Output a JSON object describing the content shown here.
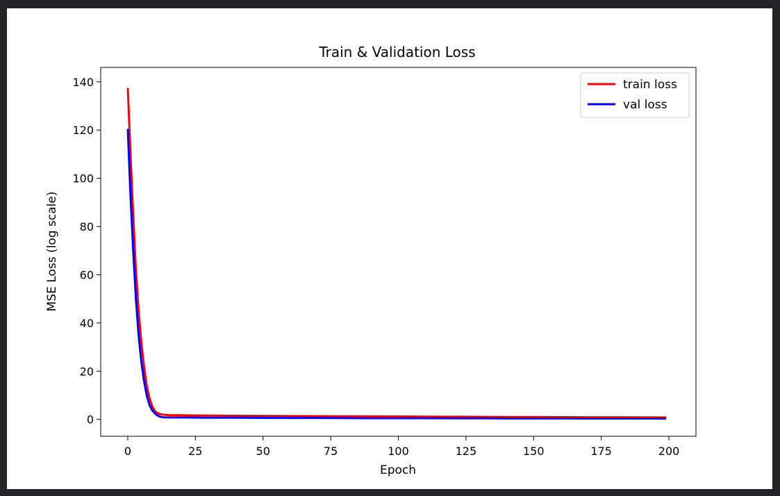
{
  "chart_data": {
    "type": "line",
    "title": "Train & Validation Loss",
    "xlabel": "Epoch",
    "ylabel": "MSE Loss (log scale)",
    "xlim": [
      -10,
      210
    ],
    "ylim": [
      -7,
      146
    ],
    "xticks": [
      0,
      25,
      50,
      75,
      100,
      125,
      150,
      175,
      200
    ],
    "yticks": [
      0,
      20,
      40,
      60,
      80,
      100,
      120,
      140
    ],
    "grid": false,
    "legend_position": "top-right",
    "series": [
      {
        "name": "train loss",
        "color": "#ff0000",
        "x": [
          0,
          1,
          2,
          3,
          4,
          5,
          6,
          7,
          8,
          9,
          10,
          11,
          12,
          13,
          14,
          15,
          20,
          25,
          30,
          40,
          50,
          60,
          70,
          80,
          90,
          100,
          110,
          120,
          130,
          140,
          150,
          160,
          170,
          180,
          190,
          199
        ],
        "y": [
          137.5,
          110,
          85,
          62,
          45,
          32,
          22,
          14,
          9,
          5.5,
          3.5,
          2.6,
          2.2,
          2.0,
          1.9,
          1.8,
          1.7,
          1.65,
          1.6,
          1.5,
          1.45,
          1.4,
          1.35,
          1.3,
          1.25,
          1.2,
          1.15,
          1.1,
          1.05,
          1.0,
          1.0,
          0.95,
          0.9,
          0.9,
          0.85,
          0.8
        ]
      },
      {
        "name": "val loss",
        "color": "#0000ff",
        "x": [
          0,
          1,
          2,
          3,
          4,
          5,
          6,
          7,
          8,
          9,
          10,
          11,
          12,
          13,
          14,
          15,
          20,
          25,
          30,
          40,
          50,
          60,
          70,
          80,
          90,
          100,
          110,
          120,
          130,
          140,
          150,
          160,
          170,
          180,
          190,
          199
        ],
        "y": [
          120.5,
          93,
          70,
          50,
          35,
          24,
          16,
          10,
          6,
          3.8,
          2.5,
          1.6,
          1.1,
          0.9,
          0.8,
          0.8,
          0.8,
          0.75,
          0.7,
          0.7,
          0.65,
          0.6,
          0.6,
          0.55,
          0.5,
          0.5,
          0.5,
          0.45,
          0.45,
          0.4,
          0.4,
          0.4,
          0.35,
          0.35,
          0.35,
          0.35
        ]
      }
    ]
  }
}
